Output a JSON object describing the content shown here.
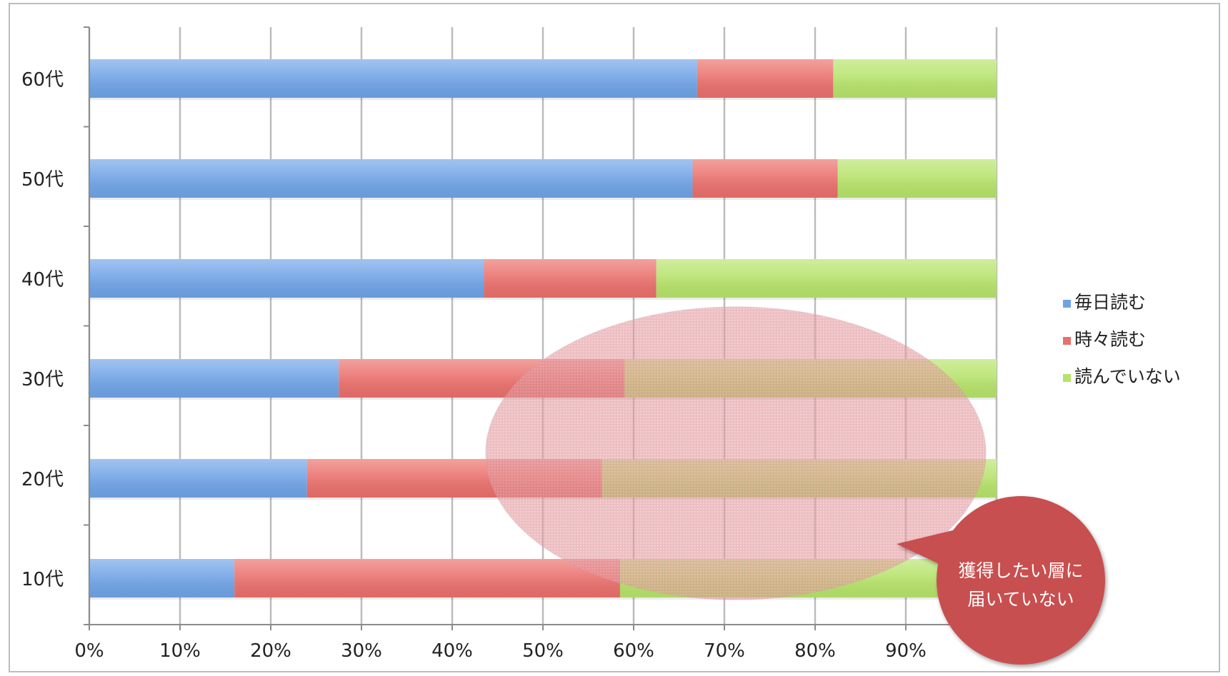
{
  "chart_data": {
    "type": "bar",
    "orientation": "horizontal",
    "stacked": true,
    "categories": [
      "60代",
      "50代",
      "40代",
      "30代",
      "20代",
      "10代"
    ],
    "series": [
      {
        "name": "毎日読む",
        "values": [
          67,
          66.5,
          43.5,
          27.5,
          24,
          16
        ],
        "color": "#6fa3e6"
      },
      {
        "name": "時々読む",
        "values": [
          15,
          16,
          19,
          31.5,
          32.5,
          42.5
        ],
        "color": "#ea6f6b"
      },
      {
        "name": "読んでいない",
        "values": [
          18,
          17.5,
          37.5,
          41,
          43.5,
          41.5
        ],
        "color": "#b6e36a"
      }
    ],
    "x_ticks": [
      "0%",
      "10%",
      "20%",
      "30%",
      "40%",
      "50%",
      "60%",
      "70%",
      "80%",
      "90%"
    ],
    "xlim": [
      0,
      100
    ],
    "grid": true,
    "legend_position": "right",
    "annotations": {
      "highlight_shape": "ellipse",
      "highlight_color": "#d9737a",
      "callout_lines": [
        "獲得したい層に",
        "届いていない"
      ],
      "callout_color": "#c84f4f"
    }
  }
}
